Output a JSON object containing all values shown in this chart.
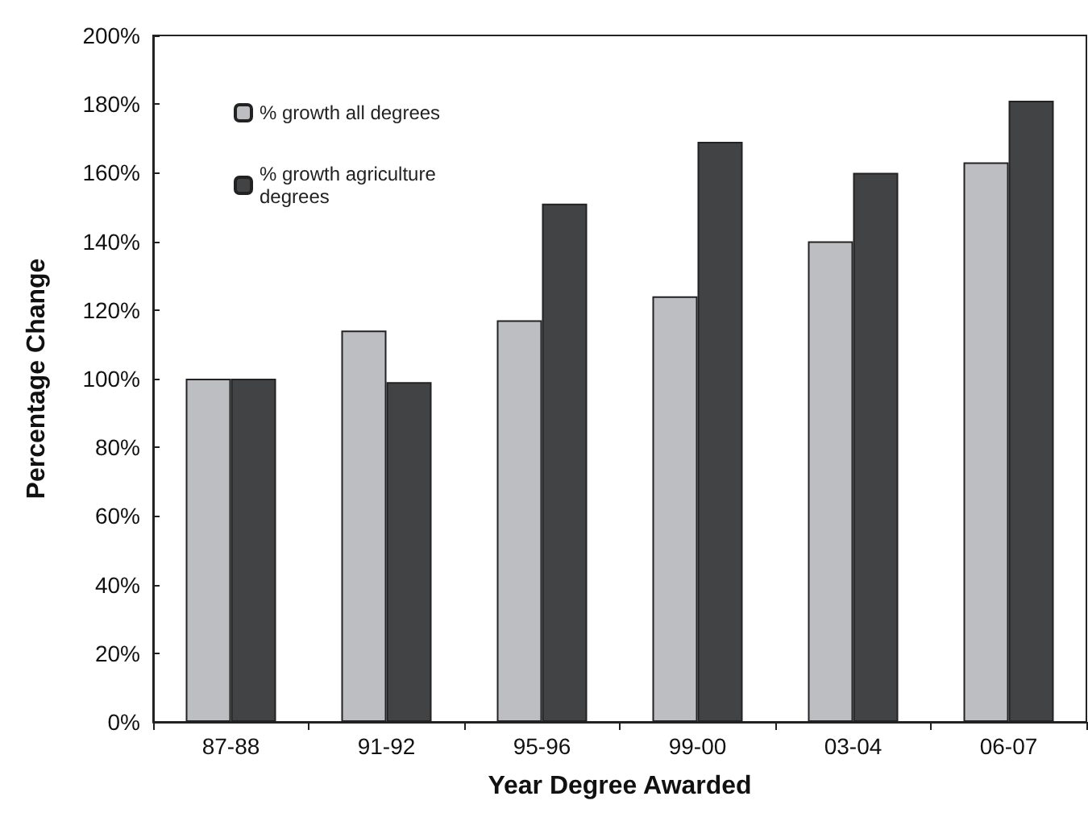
{
  "chart_data": {
    "type": "bar",
    "xlabel": "Year Degree Awarded",
    "ylabel": "Percentage Change",
    "categories": [
      "87-88",
      "91-92",
      "95-96",
      "99-00",
      "03-04",
      "06-07"
    ],
    "series": [
      {
        "name": "% growth all degrees",
        "color": "#bdbec2",
        "values": [
          100,
          114,
          117,
          124,
          140,
          163
        ]
      },
      {
        "name": "% growth agriculture degrees",
        "color": "#424345",
        "values": [
          100,
          99,
          151,
          169,
          160,
          181
        ]
      }
    ],
    "ylim": [
      0,
      200
    ],
    "yticks": [
      {
        "value": 0,
        "label": "0%"
      },
      {
        "value": 20,
        "label": "20%"
      },
      {
        "value": 40,
        "label": "40%"
      },
      {
        "value": 60,
        "label": "60%"
      },
      {
        "value": 80,
        "label": "80%"
      },
      {
        "value": 100,
        "label": "100%"
      },
      {
        "value": 120,
        "label": "120%"
      },
      {
        "value": 140,
        "label": "140%"
      },
      {
        "value": 160,
        "label": "160%"
      },
      {
        "value": 180,
        "label": "180%"
      },
      {
        "value": 200,
        "label": "200%"
      }
    ],
    "grid": false,
    "legend": "top left"
  }
}
